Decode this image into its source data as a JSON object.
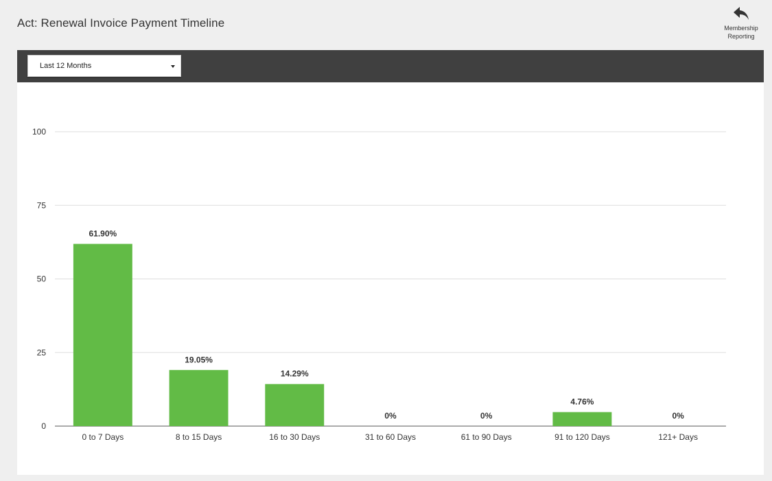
{
  "header": {
    "title": "Act: Renewal Invoice Payment Timeline",
    "back_link": {
      "icon": "reply-arrow-icon",
      "label_line1": "Membership",
      "label_line2": "Reporting"
    }
  },
  "toolbar": {
    "range_select": {
      "value": "Last 12 Months"
    }
  },
  "colors": {
    "bar": "#62bb46",
    "toolbar_bg": "#404040",
    "grid": "#dddddd",
    "axis": "#555555",
    "text": "#333333"
  },
  "chart_data": {
    "type": "bar",
    "title": "",
    "xlabel": "",
    "ylabel": "",
    "categories": [
      "0 to 7 Days",
      "8 to 15 Days",
      "16 to 30 Days",
      "31 to 60 Days",
      "61 to 90 Days",
      "91 to 120 Days",
      "121+ Days"
    ],
    "values": [
      61.9,
      19.05,
      14.29,
      0,
      0,
      4.76,
      0
    ],
    "data_labels": [
      "61.90%",
      "19.05%",
      "14.29%",
      "0%",
      "0%",
      "4.76%",
      "0%"
    ],
    "ylim": [
      0,
      100
    ],
    "yticks": [
      0,
      25,
      50,
      75,
      100
    ],
    "grid": true,
    "legend": "none"
  }
}
